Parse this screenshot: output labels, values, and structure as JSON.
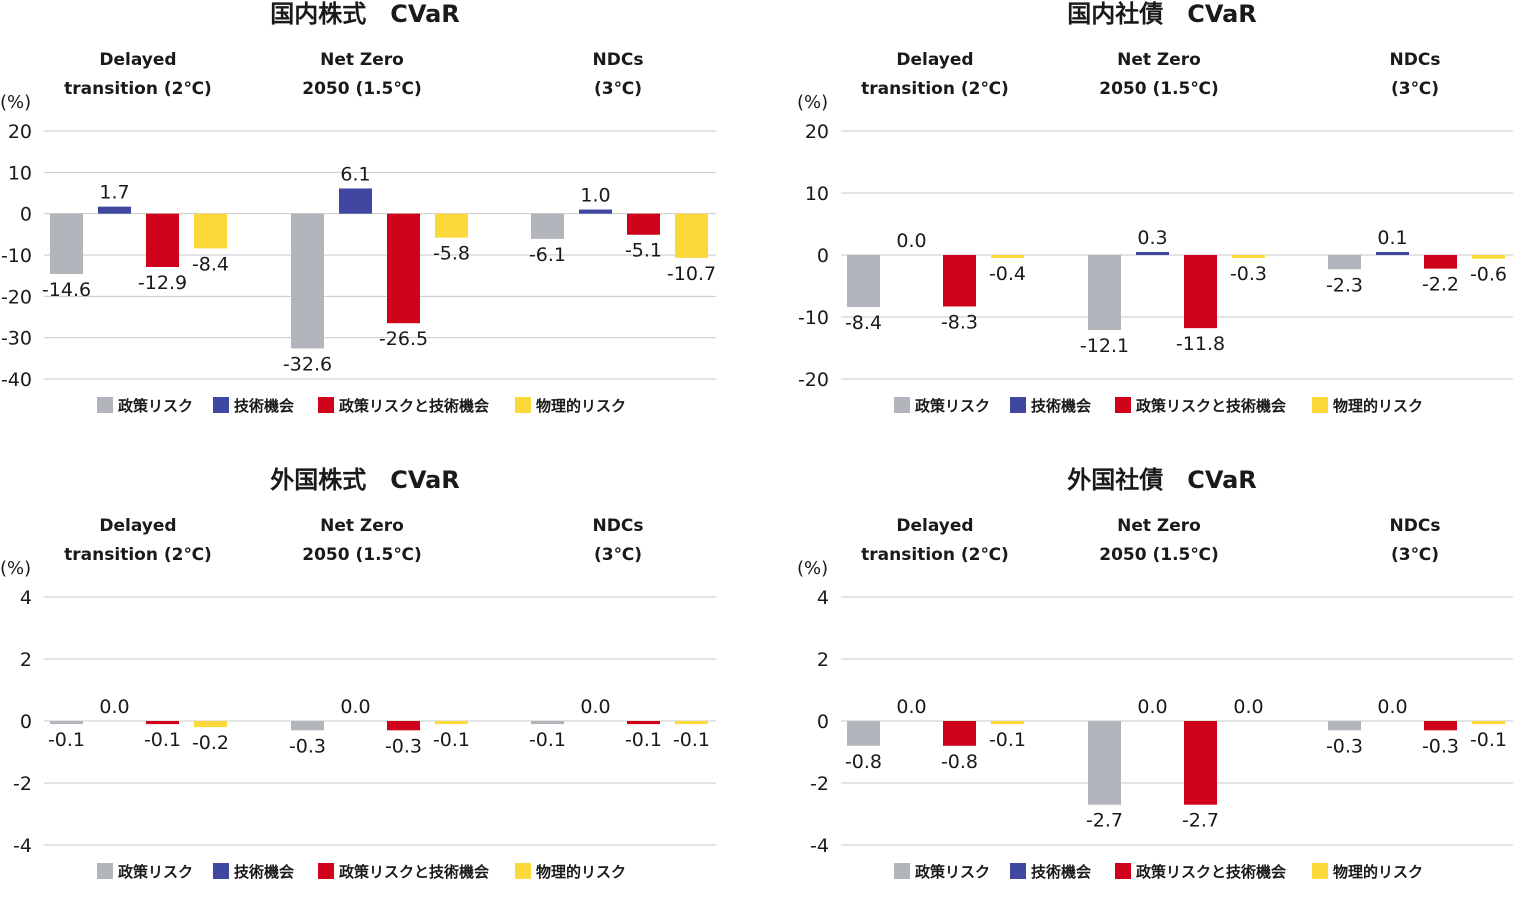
{
  "colors": {
    "policy_risk": "#b3b5bd",
    "tech_opportunity": "#3f47a1",
    "combined": "#d0021b",
    "physical_risk": "#fcd93a",
    "grid": "#c8c8c8"
  },
  "legend": [
    {
      "name": "政策リスク",
      "color_key": "policy_risk"
    },
    {
      "name": "技術機会",
      "color_key": "tech_opportunity"
    },
    {
      "name": "政策リスクと技術機会",
      "color_key": "combined"
    },
    {
      "name": "物理的リスク",
      "color_key": "physical_risk"
    }
  ],
  "unit_label": "(%)",
  "chart_data": [
    {
      "type": "bar",
      "title": "国内株式　CVaR",
      "scenarios": [
        {
          "line1": "Delayed",
          "line2": "transition (2℃)"
        },
        {
          "line1": "Net Zero",
          "line2": "2050 (1.5℃)"
        },
        {
          "line1": "NDCs",
          "line2": "(3℃)"
        }
      ],
      "series": [
        "政策リスク",
        "技術機会",
        "政策リスクと技術機会",
        "物理的リスク"
      ],
      "values": [
        [
          -14.6,
          1.7,
          -12.9,
          -8.4
        ],
        [
          -32.6,
          6.1,
          -26.5,
          -5.8
        ],
        [
          -6.1,
          1.0,
          -5.1,
          -10.7
        ]
      ],
      "labels": [
        [
          "-14.6",
          "1.7",
          "-12.9",
          "-8.4"
        ],
        [
          "-32.6",
          "6.1",
          "-26.5",
          "-5.8"
        ],
        [
          "-6.1",
          "1.0",
          "-5.1",
          "-10.7"
        ]
      ],
      "ylim": [
        -40,
        20
      ],
      "yticks": [
        20,
        10,
        0,
        -10,
        -20,
        -30,
        -40
      ],
      "ytick_labels": [
        "20",
        "10",
        "0",
        "-10",
        "-20",
        "-30",
        "-40"
      ],
      "ylabel": "(%)"
    },
    {
      "type": "bar",
      "title": "国内社債　CVaR",
      "scenarios": [
        {
          "line1": "Delayed",
          "line2": "transition (2℃)"
        },
        {
          "line1": "Net Zero",
          "line2": "2050 (1.5℃)"
        },
        {
          "line1": "NDCs",
          "line2": "(3℃)"
        }
      ],
      "series": [
        "政策リスク",
        "技術機会",
        "政策リスクと技術機会",
        "物理的リスク"
      ],
      "values": [
        [
          -8.4,
          0.0,
          -8.3,
          -0.4
        ],
        [
          -12.1,
          0.3,
          -11.8,
          -0.3
        ],
        [
          -2.3,
          0.1,
          -2.2,
          -0.6
        ]
      ],
      "labels": [
        [
          "-8.4",
          "0.0",
          "-8.3",
          "-0.4"
        ],
        [
          "-12.1",
          "0.3",
          "-11.8",
          "-0.3"
        ],
        [
          "-2.3",
          "0.1",
          "-2.2",
          "-0.6"
        ]
      ],
      "ylim": [
        -20,
        20
      ],
      "yticks": [
        20,
        10,
        0,
        -10,
        -20
      ],
      "ytick_labels": [
        "20",
        "10",
        "0",
        "-10",
        "-20"
      ],
      "ylabel": "(%)"
    },
    {
      "type": "bar",
      "title": "外国株式　CVaR",
      "scenarios": [
        {
          "line1": "Delayed",
          "line2": "transition (2℃)"
        },
        {
          "line1": "Net Zero",
          "line2": "2050 (1.5℃)"
        },
        {
          "line1": "NDCs",
          "line2": "(3℃)"
        }
      ],
      "series": [
        "政策リスク",
        "技術機会",
        "政策リスクと技術機会",
        "物理的リスク"
      ],
      "values": [
        [
          -0.1,
          0.0,
          -0.1,
          -0.2
        ],
        [
          -0.3,
          0.0,
          -0.3,
          -0.1
        ],
        [
          -0.1,
          0.0,
          -0.1,
          -0.1
        ]
      ],
      "labels": [
        [
          "-0.1",
          "0.0",
          "-0.1",
          "-0.2"
        ],
        [
          "-0.3",
          "0.0",
          "-0.3",
          "-0.1"
        ],
        [
          "-0.1",
          "0.0",
          "-0.1",
          "-0.1"
        ]
      ],
      "ylim": [
        -4,
        4
      ],
      "yticks": [
        4,
        2,
        0,
        -2,
        -4
      ],
      "ytick_labels": [
        "4",
        "2",
        "0",
        "-2",
        "-4"
      ],
      "ylabel": "(%)"
    },
    {
      "type": "bar",
      "title": "外国社債　CVaR",
      "scenarios": [
        {
          "line1": "Delayed",
          "line2": "transition (2℃)"
        },
        {
          "line1": "Net Zero",
          "line2": "2050 (1.5℃)"
        },
        {
          "line1": "NDCs",
          "line2": "(3℃)"
        }
      ],
      "series": [
        "政策リスク",
        "技術機会",
        "政策リスクと技術機会",
        "物理的リスク"
      ],
      "values": [
        [
          -0.8,
          0.0,
          -0.8,
          -0.1
        ],
        [
          -2.7,
          0.0,
          -2.7,
          0.0
        ],
        [
          -0.3,
          0.0,
          -0.3,
          -0.1
        ]
      ],
      "labels": [
        [
          "-0.8",
          "0.0",
          "-0.8",
          "-0.1"
        ],
        [
          "-2.7",
          "0.0",
          "-2.7",
          "0.0"
        ],
        [
          "-0.3",
          "0.0",
          "-0.3",
          "-0.1"
        ]
      ],
      "ylim": [
        -4,
        4
      ],
      "yticks": [
        4,
        2,
        0,
        -2,
        -4
      ],
      "ytick_labels": [
        "4",
        "2",
        "0",
        "-2",
        "-4"
      ],
      "ylabel": "(%)"
    }
  ]
}
